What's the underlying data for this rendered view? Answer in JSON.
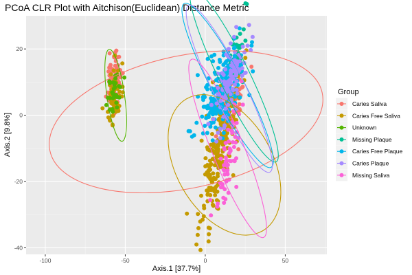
{
  "chart_data": {
    "type": "scatter",
    "title": "PCoA CLR Plot with Aitchison(Euclidean) Distance Metric",
    "xlabel": "Axis.1   [37.7%]",
    "ylabel": "Axis.2   [9.8%]",
    "xlim": [
      -112,
      76
    ],
    "ylim": [
      -42,
      30
    ],
    "xticks": [
      -100,
      -50,
      0,
      50
    ],
    "yticks": [
      -40,
      -20,
      0,
      20
    ],
    "grid": true,
    "legend": {
      "title": "Group",
      "placement": "right"
    },
    "series": [
      {
        "name": "Caries Saliva",
        "color": "#F8766D",
        "clusters": [
          {
            "cx": -57,
            "cy": 10,
            "sx": 2.5,
            "sy": 4.5,
            "r": 0.2,
            "n": 70
          },
          {
            "cx": 16,
            "cy": 1,
            "sx": 5,
            "sy": 6,
            "r": 0.7,
            "n": 70
          }
        ],
        "ellipse": {
          "cx": -12,
          "cy": -2,
          "rx": 87,
          "ry": 20,
          "angle_deg": -12
        }
      },
      {
        "name": "Caries Free Saliva",
        "color": "#C49A00",
        "clusters": [
          {
            "cx": -57,
            "cy": 5,
            "sx": 2.5,
            "sy": 4.5,
            "r": 0.2,
            "n": 60
          },
          {
            "cx": 8,
            "cy": -12,
            "sx": 6,
            "sy": 11,
            "r": 0.75,
            "n": 230
          }
        ],
        "ellipse": {
          "cx": 12,
          "cy": -15,
          "rx": 30,
          "ry": 23,
          "angle_deg": -30
        }
      },
      {
        "name": "Unknown",
        "color": "#53B400",
        "clusters": [
          {
            "cx": -57,
            "cy": 6,
            "sx": 2,
            "sy": 3.5,
            "r": 0.2,
            "n": 30
          }
        ],
        "ellipse": {
          "cx": -56,
          "cy": 6,
          "rx": 5.5,
          "ry": 14,
          "angle_deg": -8
        }
      },
      {
        "name": "Missing Plaque",
        "color": "#00C094",
        "clusters": [
          {
            "cx": 20,
            "cy": 17,
            "sx": 3,
            "sy": 6,
            "r": 0.5,
            "n": 50
          }
        ],
        "ellipse": {
          "cx": 18,
          "cy": 12,
          "rx": 9.5,
          "ry": 29,
          "angle_deg": -26
        }
      },
      {
        "name": "Caries Free Plaque",
        "color": "#00B6EB",
        "clusters": [
          {
            "cx": 10,
            "cy": 7,
            "sx": 7.5,
            "sy": 7,
            "r": 0.6,
            "n": 200
          }
        ],
        "ellipse": {
          "cx": 14,
          "cy": 9,
          "rx": 10,
          "ry": 28,
          "angle_deg": -28
        }
      },
      {
        "name": "Caries Plaque",
        "color": "#A58AFF",
        "clusters": [
          {
            "cx": 15,
            "cy": 9,
            "sx": 5,
            "sy": 7,
            "r": 0.6,
            "n": 110
          }
        ],
        "ellipse": {
          "cx": 15,
          "cy": 8,
          "rx": 10,
          "ry": 28,
          "angle_deg": -26
        }
      },
      {
        "name": "Missing Saliva",
        "color": "#FB61D7",
        "clusters": [
          {
            "cx": 15,
            "cy": -12,
            "sx": 4,
            "sy": 9,
            "r": 0.7,
            "n": 60
          }
        ],
        "ellipse": {
          "cx": 14,
          "cy": -10,
          "rx": 10,
          "ry": 29,
          "angle_deg": -22
        }
      }
    ]
  }
}
